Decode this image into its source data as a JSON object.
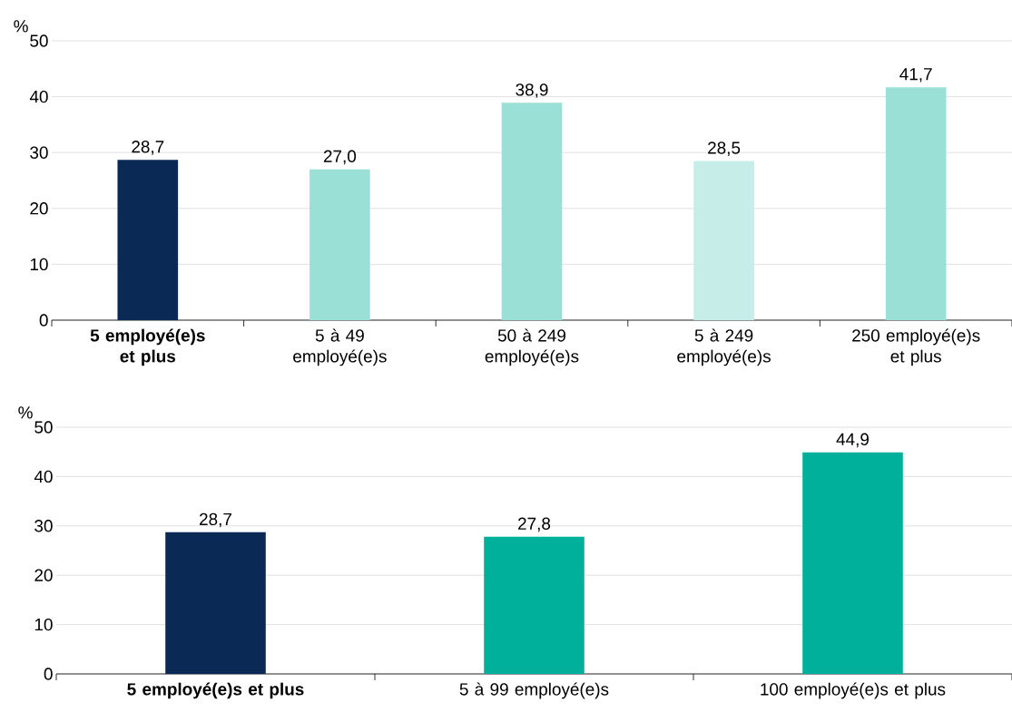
{
  "chart_data": [
    {
      "type": "bar",
      "ylabel": "%",
      "categories": [
        "**5 employé(e)s et plus**",
        "5 à 49 employé(e)s",
        "50 à 249 employé(e)s",
        "5 à 249 employé(e)s",
        "250 employé(e)s et plus"
      ],
      "values": [
        28.7,
        27.0,
        38.9,
        28.5,
        41.7
      ],
      "value_labels": [
        "28,7",
        "27,0",
        "38,9",
        "28,5",
        "41,7"
      ],
      "colors": [
        "#0a2a55",
        "#9be0d6",
        "#9be0d6",
        "#c6ede7",
        "#9be0d6"
      ],
      "ylim": [
        0,
        50
      ],
      "yticks": [
        0,
        10,
        20,
        30,
        40,
        50
      ],
      "grid": "y"
    },
    {
      "type": "bar",
      "ylabel": "%",
      "categories": [
        "**5 employé(e)s et plus**",
        "5 à 99 employé(e)s",
        "100 employé(e)s et plus"
      ],
      "values": [
        28.7,
        27.8,
        44.9
      ],
      "value_labels": [
        "28,7",
        "27,8",
        "44,9"
      ],
      "colors": [
        "#0a2a55",
        "#00b09b",
        "#00b09b"
      ],
      "ylim": [
        0,
        50
      ],
      "yticks": [
        0,
        10,
        20,
        30,
        40,
        50
      ],
      "grid": "y"
    }
  ]
}
